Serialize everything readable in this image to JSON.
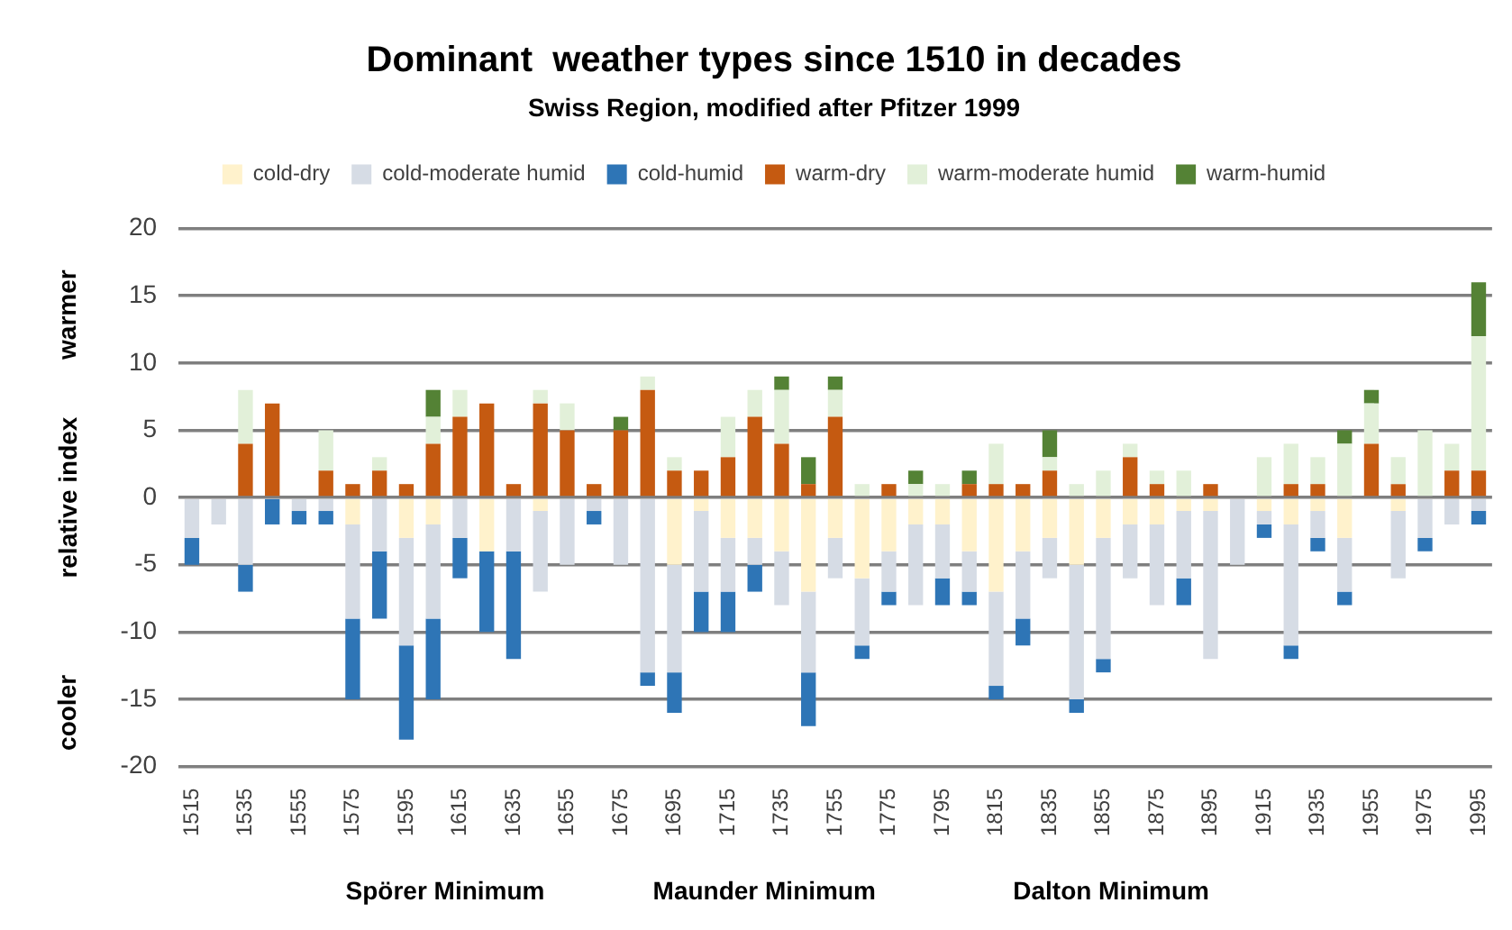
{
  "chart_data": {
    "type": "bar",
    "title": "Dominant  weather types since 1510 in decades",
    "subtitle": "Swiss Region, modified after Pfitzer 1999",
    "ylabel": "relative index",
    "annotations": [
      "warmer",
      "cooler",
      "Spörer Minimum",
      "Maunder Minimum",
      "Dalton Minimum"
    ],
    "categories": [
      "1515",
      null,
      "1535",
      null,
      "1555",
      null,
      "1575",
      null,
      "1595",
      null,
      "1615",
      null,
      "1635",
      null,
      "1655",
      null,
      "1675",
      null,
      "1695",
      null,
      "1715",
      null,
      "1735",
      null,
      "1755",
      null,
      "1775",
      null,
      "1795",
      null,
      "1815",
      null,
      "1835",
      null,
      "1855",
      null,
      "1875",
      null,
      "1895",
      null,
      "1915",
      null,
      "1935",
      null,
      "1955",
      null,
      "1975",
      null,
      "1995"
    ],
    "series": [
      {
        "name": "cold-dry",
        "color": "#fff2cc",
        "values": [
          0,
          0,
          0,
          0,
          0,
          0,
          -2,
          0,
          -3,
          -2,
          0,
          -4,
          0,
          -1,
          0,
          0,
          0,
          0,
          -5,
          -1,
          -3,
          -3,
          -4,
          -7,
          -3,
          -6,
          -4,
          -2,
          -2,
          -4,
          -7,
          -4,
          -3,
          -5,
          -3,
          -2,
          -2,
          -1,
          -1,
          0,
          -1,
          -2,
          -1,
          -3,
          0,
          -1,
          0,
          0,
          0
        ]
      },
      {
        "name": "cold-moderate humid",
        "color": "#d6dce5",
        "values": [
          -3,
          -2,
          -5,
          0,
          -1,
          -1,
          -7,
          -4,
          -8,
          -7,
          -3,
          0,
          -4,
          -6,
          -5,
          -1,
          -5,
          -13,
          -8,
          -6,
          -4,
          -2,
          -4,
          -6,
          -3,
          -5,
          -3,
          -6,
          -4,
          -3,
          -7,
          -5,
          -3,
          -10,
          -9,
          -4,
          -6,
          -5,
          -11,
          -5,
          -1,
          -9,
          -2,
          -4,
          0,
          -5,
          -3,
          -2,
          -1
        ]
      },
      {
        "name": "cold-humid",
        "color": "#2e75b6",
        "values": [
          -2,
          0,
          -2,
          -2,
          -1,
          -1,
          -6,
          -5,
          -7,
          -6,
          -3,
          -6,
          -8,
          0,
          0,
          -1,
          0,
          -1,
          -3,
          -3,
          -3,
          -2,
          0,
          -4,
          0,
          -1,
          -1,
          0,
          -2,
          -1,
          -1,
          -2,
          0,
          -1,
          -1,
          0,
          0,
          -2,
          0,
          0,
          -1,
          -1,
          -1,
          -1,
          0,
          0,
          -1,
          0,
          -1
        ]
      },
      {
        "name": "warm-dry",
        "color": "#c55a11",
        "values": [
          0,
          0,
          4,
          7,
          0,
          2,
          1,
          2,
          1,
          4,
          6,
          7,
          1,
          7,
          5,
          1,
          5,
          8,
          2,
          2,
          3,
          6,
          4,
          1,
          6,
          0,
          1,
          0,
          0,
          1,
          1,
          1,
          2,
          0,
          0,
          3,
          1,
          0,
          1,
          0,
          0,
          1,
          1,
          0,
          4,
          1,
          0,
          2,
          2
        ]
      },
      {
        "name": "warm-moderate humid",
        "color": "#e2f0d9",
        "values": [
          0,
          0,
          4,
          0,
          0,
          3,
          0,
          1,
          0,
          2,
          2,
          0,
          0,
          1,
          2,
          0,
          0,
          1,
          1,
          0,
          3,
          2,
          4,
          0,
          2,
          1,
          0,
          1,
          1,
          0,
          3,
          0,
          1,
          1,
          2,
          1,
          1,
          2,
          0,
          0,
          3,
          3,
          2,
          4,
          3,
          2,
          5,
          2,
          10
        ]
      },
      {
        "name": "warm-humid",
        "color": "#548235",
        "values": [
          0,
          0,
          0,
          0,
          0,
          0,
          0,
          0,
          0,
          2,
          0,
          0,
          0,
          0,
          0,
          0,
          1,
          0,
          0,
          0,
          0,
          0,
          1,
          2,
          1,
          0,
          0,
          1,
          0,
          1,
          0,
          0,
          2,
          0,
          0,
          0,
          0,
          0,
          0,
          0,
          0,
          0,
          0,
          1,
          1,
          0,
          0,
          0,
          4
        ]
      }
    ],
    "stacked": true,
    "ylim": [
      -20,
      20
    ],
    "yticks": [
      -20,
      -15,
      -10,
      -5,
      0,
      5,
      10,
      15,
      20
    ],
    "grid": "y",
    "legend": "top"
  }
}
